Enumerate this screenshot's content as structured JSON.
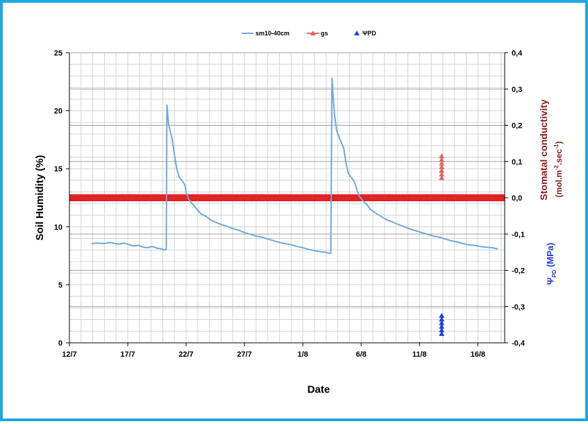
{
  "chart_data": {
    "type": "line",
    "xlabel": "Date",
    "ylabel": "Soil Humidity (%)",
    "y2label": "Stomatal conductivity",
    "y2unit_prefix": "(mol.m",
    "y2unit_exp1": "-2",
    "y2unit_mid": ".sec",
    "y2unit_exp2": "-1",
    "y2unit_suffix": ")",
    "y3label_base": "Ψ",
    "y3label_sub": "PD",
    "y3label_unit": " (MPa)",
    "x_ticks": [
      "12/7",
      "17/7",
      "22/7",
      "27/7",
      "1/8",
      "6/8",
      "11/8",
      "16/8"
    ],
    "x_tick_days": [
      0,
      5,
      10,
      15,
      20,
      25,
      30,
      35
    ],
    "x_start_date": "12/7",
    "xlim_days": [
      0,
      37.3
    ],
    "ylim": [
      0,
      25
    ],
    "y_ticks": [
      "0",
      "5",
      "10",
      "15",
      "20",
      "25"
    ],
    "y2lim": [
      -0.4,
      0.4
    ],
    "y2_ticks": [
      "-0,4",
      "-0,3",
      "-0,2",
      "-0,1",
      "0,0",
      "0,1",
      "0,2",
      "0,3",
      "0,4"
    ],
    "grid": true,
    "legend_position": "top-center",
    "series": [
      {
        "name": "sm10-40cm",
        "color": "#6fa8dc",
        "axis": "left",
        "points": [
          [
            1.9,
            8.55
          ],
          [
            2.3,
            8.6
          ],
          [
            2.8,
            8.55
          ],
          [
            3.2,
            8.6
          ],
          [
            3.5,
            8.65
          ],
          [
            3.9,
            8.55
          ],
          [
            4.3,
            8.5
          ],
          [
            4.7,
            8.6
          ],
          [
            5.1,
            8.45
          ],
          [
            5.5,
            8.35
          ],
          [
            5.9,
            8.4
          ],
          [
            6.3,
            8.25
          ],
          [
            6.7,
            8.2
          ],
          [
            7.1,
            8.3
          ],
          [
            7.5,
            8.15
          ],
          [
            7.9,
            8.1
          ],
          [
            8.1,
            8.0
          ],
          [
            8.3,
            8.05
          ],
          [
            8.35,
            20.5
          ],
          [
            8.5,
            18.8
          ],
          [
            8.8,
            17.6
          ],
          [
            9.0,
            16.2
          ],
          [
            9.2,
            15.0
          ],
          [
            9.4,
            14.3
          ],
          [
            9.7,
            13.9
          ],
          [
            9.9,
            13.6
          ],
          [
            10.0,
            13.0
          ],
          [
            10.2,
            12.4
          ],
          [
            10.5,
            12.0
          ],
          [
            10.7,
            11.8
          ],
          [
            11.0,
            11.4
          ],
          [
            11.3,
            11.1
          ],
          [
            11.7,
            10.9
          ],
          [
            12.1,
            10.6
          ],
          [
            12.5,
            10.4
          ],
          [
            13.0,
            10.2
          ],
          [
            13.5,
            10.05
          ],
          [
            14.0,
            9.85
          ],
          [
            14.5,
            9.7
          ],
          [
            15.0,
            9.5
          ],
          [
            15.5,
            9.35
          ],
          [
            16.0,
            9.2
          ],
          [
            16.5,
            9.1
          ],
          [
            17.0,
            8.95
          ],
          [
            17.5,
            8.8
          ],
          [
            18.0,
            8.65
          ],
          [
            18.5,
            8.55
          ],
          [
            19.0,
            8.45
          ],
          [
            19.5,
            8.3
          ],
          [
            20.0,
            8.2
          ],
          [
            20.5,
            8.05
          ],
          [
            21.0,
            7.95
          ],
          [
            21.5,
            7.85
          ],
          [
            22.0,
            7.8
          ],
          [
            22.3,
            7.7
          ],
          [
            22.4,
            7.75
          ],
          [
            22.5,
            22.8
          ],
          [
            22.7,
            19.8
          ],
          [
            22.9,
            18.3
          ],
          [
            23.2,
            17.5
          ],
          [
            23.5,
            16.8
          ],
          [
            23.7,
            15.5
          ],
          [
            23.9,
            14.6
          ],
          [
            24.2,
            14.2
          ],
          [
            24.4,
            13.9
          ],
          [
            24.6,
            13.3
          ],
          [
            24.8,
            12.7
          ],
          [
            25.1,
            12.3
          ],
          [
            25.5,
            11.9
          ],
          [
            25.8,
            11.5
          ],
          [
            26.2,
            11.2
          ],
          [
            26.7,
            10.9
          ],
          [
            27.2,
            10.6
          ],
          [
            27.7,
            10.4
          ],
          [
            28.2,
            10.2
          ],
          [
            28.7,
            10.0
          ],
          [
            29.2,
            9.8
          ],
          [
            29.7,
            9.65
          ],
          [
            30.2,
            9.5
          ],
          [
            30.7,
            9.35
          ],
          [
            31.2,
            9.2
          ],
          [
            31.7,
            9.1
          ],
          [
            32.2,
            8.95
          ],
          [
            32.7,
            8.8
          ],
          [
            33.2,
            8.7
          ],
          [
            33.7,
            8.55
          ],
          [
            34.2,
            8.45
          ],
          [
            34.7,
            8.4
          ],
          [
            35.2,
            8.3
          ],
          [
            35.7,
            8.25
          ],
          [
            36.2,
            8.2
          ],
          [
            36.7,
            8.1
          ]
        ]
      },
      {
        "name": "gs",
        "color": "#e06666",
        "axis": "right",
        "points": [
          [
            31.9,
            0.115
          ],
          [
            31.9,
            0.105
          ],
          [
            31.9,
            0.095
          ],
          [
            31.9,
            0.085
          ],
          [
            31.9,
            0.075
          ],
          [
            31.9,
            0.065
          ],
          [
            31.9,
            0.055
          ]
        ]
      },
      {
        "name": "ΨPD",
        "color": "#1f3fe0",
        "axis": "right",
        "points": [
          [
            31.9,
            -0.325
          ],
          [
            31.9,
            -0.335
          ],
          [
            31.9,
            -0.345
          ],
          [
            31.9,
            -0.355
          ],
          [
            31.9,
            -0.365
          ],
          [
            31.9,
            -0.375
          ]
        ]
      }
    ],
    "reference_band": {
      "axis": "right",
      "value": 0.0,
      "color": "#e32222"
    }
  }
}
